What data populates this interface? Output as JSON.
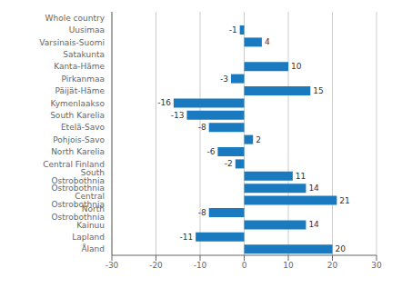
{
  "chart_data": {
    "type": "bar",
    "orientation": "horizontal",
    "categories": [
      "Whole country",
      "Uusimaa",
      "Varsinais-Suomi",
      "Satakunta",
      "Kanta-Häme",
      "Pirkanmaa",
      "Päijät-Häme",
      "Kymenlaakso",
      "South Karelia",
      "Etelä-Savo",
      "Pohjois-Savo",
      "North Karelia",
      "Central Finland",
      "South Ostrobothnia",
      "Ostrobothnia",
      "Central Ostrobothnia",
      "North Ostrobothnia",
      "Kainuu",
      "Lapland",
      "Åland"
    ],
    "values": [
      0,
      -1,
      4,
      0,
      10,
      -3,
      15,
      -16,
      -13,
      -8,
      2,
      -6,
      -2,
      11,
      14,
      21,
      -8,
      14,
      -11,
      20
    ],
    "color": "#1a7abf",
    "xlim": [
      -30,
      30
    ],
    "xticks": [
      -30,
      -20,
      -10,
      0,
      10,
      20,
      30
    ],
    "grid": true,
    "data_labels": true
  }
}
